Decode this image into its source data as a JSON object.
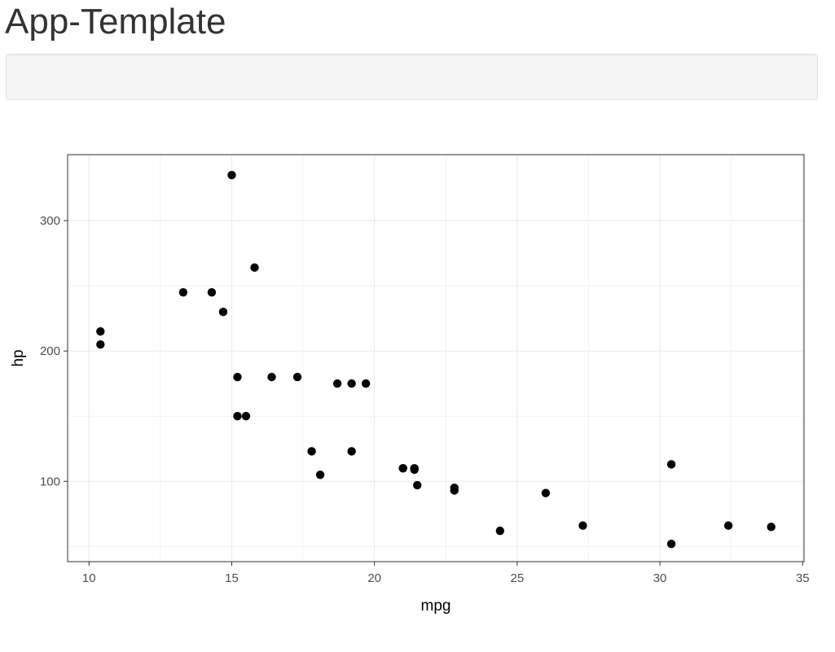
{
  "app": {
    "title": "App-Template"
  },
  "sidebar_panel": {},
  "chart_data": {
    "type": "scatter",
    "title": "",
    "xlabel": "mpg",
    "ylabel": "hp",
    "xlim": [
      9.25,
      35.05
    ],
    "ylim": [
      38.35,
      350.65
    ],
    "x_ticks": [
      10,
      15,
      20,
      25,
      30,
      35
    ],
    "y_ticks": [
      100,
      200,
      300
    ],
    "grid": true,
    "point_color": "#000000",
    "gridline_color": "#ebebeb",
    "panel_border_color": "#333333",
    "points": [
      {
        "x": 21.0,
        "y": 110
      },
      {
        "x": 21.0,
        "y": 110
      },
      {
        "x": 22.8,
        "y": 93
      },
      {
        "x": 21.4,
        "y": 110
      },
      {
        "x": 18.7,
        "y": 175
      },
      {
        "x": 18.1,
        "y": 105
      },
      {
        "x": 14.3,
        "y": 245
      },
      {
        "x": 24.4,
        "y": 62
      },
      {
        "x": 22.8,
        "y": 95
      },
      {
        "x": 19.2,
        "y": 123
      },
      {
        "x": 17.8,
        "y": 123
      },
      {
        "x": 16.4,
        "y": 180
      },
      {
        "x": 17.3,
        "y": 180
      },
      {
        "x": 15.2,
        "y": 180
      },
      {
        "x": 10.4,
        "y": 205
      },
      {
        "x": 10.4,
        "y": 215
      },
      {
        "x": 14.7,
        "y": 230
      },
      {
        "x": 32.4,
        "y": 66
      },
      {
        "x": 30.4,
        "y": 52
      },
      {
        "x": 33.9,
        "y": 65
      },
      {
        "x": 21.5,
        "y": 97
      },
      {
        "x": 15.5,
        "y": 150
      },
      {
        "x": 15.2,
        "y": 150
      },
      {
        "x": 13.3,
        "y": 245
      },
      {
        "x": 19.2,
        "y": 175
      },
      {
        "x": 27.3,
        "y": 66
      },
      {
        "x": 26.0,
        "y": 91
      },
      {
        "x": 30.4,
        "y": 113
      },
      {
        "x": 15.8,
        "y": 264
      },
      {
        "x": 19.7,
        "y": 175
      },
      {
        "x": 15.0,
        "y": 335
      },
      {
        "x": 21.4,
        "y": 109
      }
    ]
  }
}
